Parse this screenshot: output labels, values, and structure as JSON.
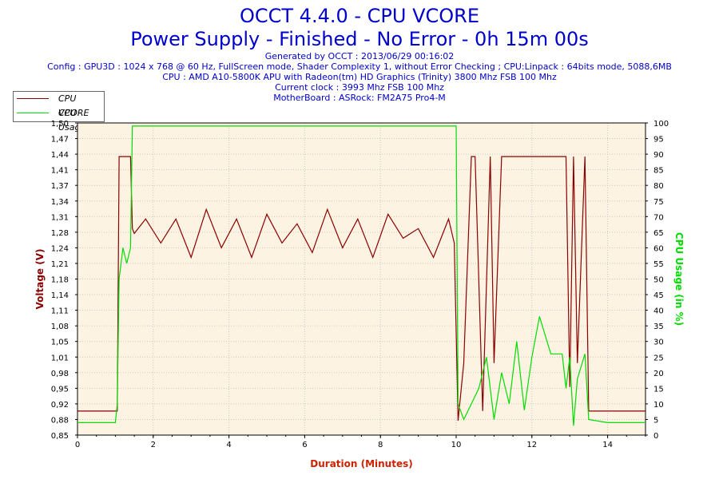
{
  "header": {
    "title": "OCCT 4.4.0 - CPU VCORE",
    "subtitle": "Power Supply - Finished - No Error - 0h 15m 00s",
    "generated": "Generated by OCCT : 2013/06/29 00:16:02",
    "config": "Config : GPU3D : 1024 x 768 @ 60 Hz, FullScreen mode, Shader Complexity 1, without Error Checking ; CPU:Linpack : 64bits mode, 5088,6MB",
    "cpu": "CPU : AMD A10-5800K APU with Radeon(tm) HD Graphics (Trinity) 3800 Mhz FSB 100 Mhz",
    "clock": "Current clock : 3993 Mhz FSB 100 Mhz",
    "motherboard": "MotherBoard : ASRock: FM2A75 Pro4-M"
  },
  "colors": {
    "title": "#0000cc",
    "vcore": "#8b0000",
    "usage": "#00dd00",
    "plot_bg": "#fdf3e3",
    "grid": "#c8c8c8",
    "xlabel": "#cc2200"
  },
  "chart_data": {
    "type": "line",
    "xlabel": "Duration (Minutes)",
    "ylabel": "Voltage (V)",
    "y2label": "CPU Usage (in %)",
    "xlim": [
      0,
      15
    ],
    "ylim": [
      0.85,
      1.5
    ],
    "y2lim": [
      0,
      100
    ],
    "x_ticks": [
      0,
      2,
      4,
      6,
      8,
      10,
      12,
      14
    ],
    "y_ticks": [
      "0,85",
      "0,88",
      "0,92",
      "0,95",
      "0,98",
      "1,01",
      "1,05",
      "1,08",
      "1,11",
      "1,14",
      "1,18",
      "1,21",
      "1,24",
      "1,28",
      "1,31",
      "1,34",
      "1,37",
      "1,41",
      "1,44",
      "1,47",
      "1,50"
    ],
    "y2_ticks": [
      0,
      5,
      10,
      15,
      20,
      25,
      30,
      35,
      40,
      45,
      50,
      55,
      60,
      65,
      70,
      75,
      80,
      85,
      90,
      95,
      100
    ],
    "legend": {
      "position": "top-left"
    },
    "grid": true,
    "series": [
      {
        "name": "CPU VCORE",
        "axis": "left",
        "x": [
          0,
          0.5,
          1.0,
          1.05,
          1.1,
          1.2,
          1.4,
          1.45,
          1.5,
          1.8,
          2.2,
          2.6,
          3.0,
          3.4,
          3.8,
          4.2,
          4.6,
          5.0,
          5.4,
          5.8,
          6.2,
          6.6,
          7.0,
          7.4,
          7.8,
          8.2,
          8.6,
          9.0,
          9.4,
          9.8,
          9.95,
          10.05,
          10.2,
          10.4,
          10.5,
          10.7,
          10.9,
          11.0,
          11.2,
          11.5,
          12.0,
          12.5,
          12.9,
          13.0,
          13.1,
          13.2,
          13.4,
          13.5,
          14.0,
          15.0
        ],
        "values": [
          0.9,
          0.9,
          0.9,
          0.9,
          1.43,
          1.43,
          1.43,
          1.28,
          1.27,
          1.3,
          1.25,
          1.3,
          1.22,
          1.32,
          1.24,
          1.3,
          1.22,
          1.31,
          1.25,
          1.29,
          1.23,
          1.32,
          1.24,
          1.3,
          1.22,
          1.31,
          1.26,
          1.28,
          1.22,
          1.3,
          1.25,
          0.88,
          1.0,
          1.43,
          1.43,
          0.9,
          1.43,
          1.0,
          1.43,
          1.43,
          1.43,
          1.43,
          1.43,
          0.95,
          1.43,
          1.0,
          1.43,
          0.9,
          0.9,
          0.9
        ]
      },
      {
        "name": "CPU Usage",
        "axis": "right",
        "x": [
          0,
          0.5,
          1.0,
          1.05,
          1.1,
          1.2,
          1.3,
          1.4,
          1.45,
          2.0,
          4.0,
          6.0,
          8.0,
          9.9,
          10.0,
          10.05,
          10.2,
          10.4,
          10.6,
          10.8,
          11.0,
          11.2,
          11.4,
          11.6,
          11.8,
          12.0,
          12.2,
          12.5,
          12.8,
          12.9,
          13.0,
          13.1,
          13.2,
          13.4,
          13.5,
          14.0,
          15.0
        ],
        "values": [
          4,
          4,
          4,
          10,
          50,
          60,
          55,
          60,
          99,
          99,
          99,
          99,
          99,
          99,
          99,
          10,
          5,
          10,
          15,
          25,
          5,
          20,
          10,
          30,
          8,
          25,
          38,
          26,
          26,
          15,
          25,
          3,
          18,
          26,
          5,
          4,
          4
        ]
      }
    ]
  }
}
